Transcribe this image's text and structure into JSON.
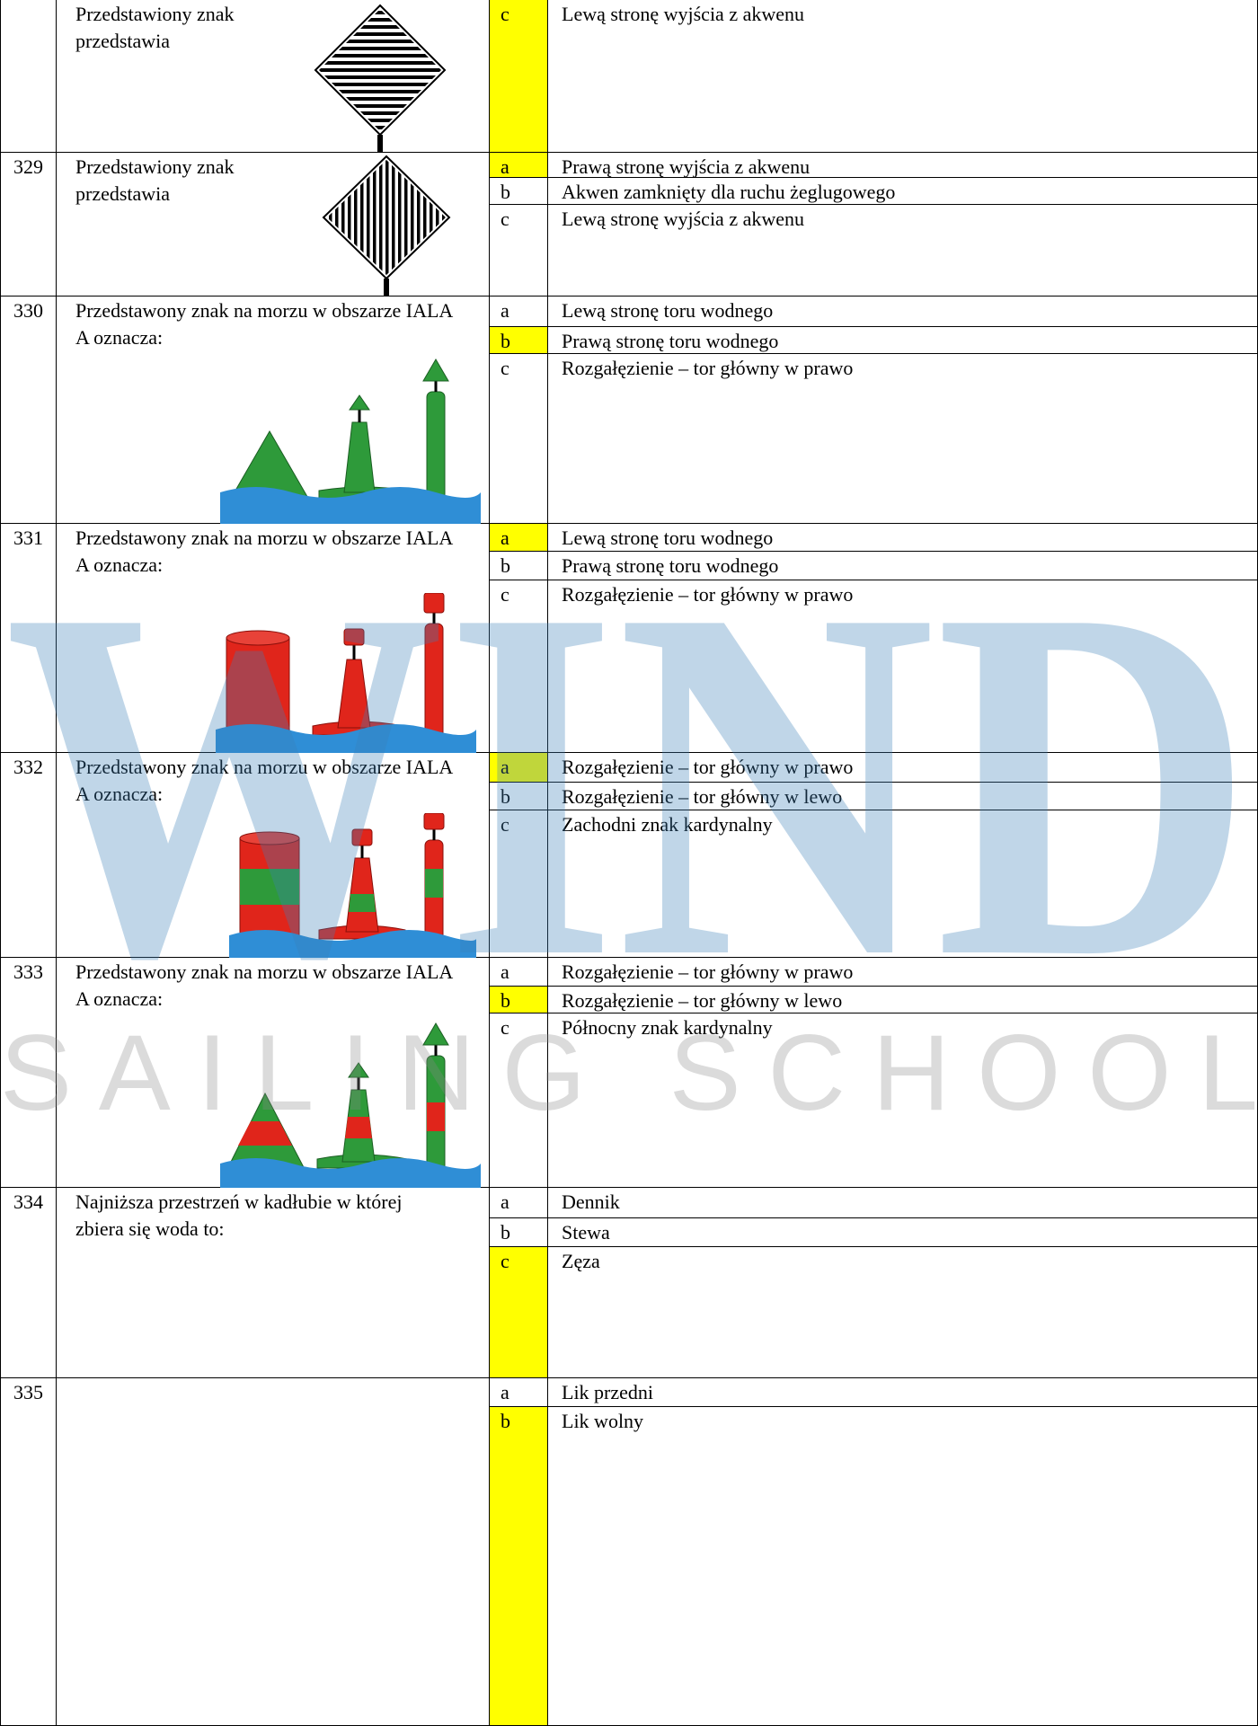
{
  "watermark": {
    "logo": "WIND",
    "tagline": "SAILING SCHOOL"
  },
  "rows": [
    {
      "question": "Przedstawiony znak przedstawia",
      "options": [
        {
          "letter": "c",
          "text": "Lewą stronę wyjścia z akwenu",
          "correct": true
        }
      ]
    },
    {
      "number": "329",
      "question": "Przedstawiony znak przedstawia",
      "options": [
        {
          "letter": "a",
          "text": "Prawą stronę wyjścia z akwenu",
          "correct": true
        },
        {
          "letter": "b",
          "text": "Akwen zamknięty dla ruchu żeglugowego",
          "correct": false
        },
        {
          "letter": "c",
          "text": "Lewą stronę wyjścia z akwenu",
          "correct": false
        }
      ]
    },
    {
      "number": "330",
      "question": "Przedstawony znak na morzu w obszarze IALA A oznacza:",
      "options": [
        {
          "letter": "a",
          "text": "Lewą stronę toru wodnego",
          "correct": false
        },
        {
          "letter": "b",
          "text": "Prawą stronę toru wodnego",
          "correct": true
        },
        {
          "letter": "c",
          "text": "Rozgałęzienie – tor główny w prawo",
          "correct": false
        }
      ]
    },
    {
      "number": "331",
      "question": "Przedstawony znak na morzu w obszarze IALA A oznacza:",
      "options": [
        {
          "letter": "a",
          "text": "Lewą stronę toru wodnego",
          "correct": true
        },
        {
          "letter": "b",
          "text": "Prawą stronę toru wodnego",
          "correct": false
        },
        {
          "letter": "c",
          "text": "Rozgałęzienie – tor główny w prawo",
          "correct": false
        }
      ]
    },
    {
      "number": "332",
      "question": "Przedstawony znak na morzu w obszarze IALA A oznacza:",
      "options": [
        {
          "letter": "a",
          "text": "Rozgałęzienie – tor główny w prawo",
          "correct": true
        },
        {
          "letter": "b",
          "text": "Rozgałęzienie – tor główny w lewo",
          "correct": false
        },
        {
          "letter": "c",
          "text": "Zachodni znak kardynalny",
          "correct": false
        }
      ]
    },
    {
      "number": "333",
      "question": "Przedstawony znak na morzu w obszarze IALA A oznacza:",
      "options": [
        {
          "letter": "a",
          "text": "Rozgałęzienie – tor główny w prawo",
          "correct": false
        },
        {
          "letter": "b",
          "text": "Rozgałęzienie – tor główny w lewo",
          "correct": true
        },
        {
          "letter": "c",
          "text": "Północny  znak kardynalny",
          "correct": false
        }
      ]
    },
    {
      "number": "334",
      "question": "Najniższa przestrzeń w kadłubie w której zbiera się woda to:",
      "options": [
        {
          "letter": "a",
          "text": "Dennik",
          "correct": false
        },
        {
          "letter": "b",
          "text": "Stewa",
          "correct": false
        },
        {
          "letter": "c",
          "text": "Zęza",
          "correct": true
        }
      ]
    },
    {
      "number": "335",
      "options": [
        {
          "letter": "a",
          "text": "Lik przedni",
          "correct": false
        },
        {
          "letter": "b",
          "text": "Lik wolny",
          "correct": true
        }
      ]
    }
  ]
}
